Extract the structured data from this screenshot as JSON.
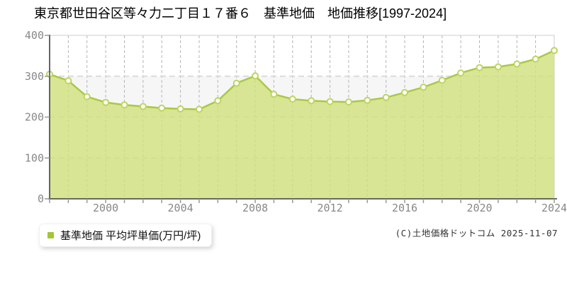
{
  "title": "東京都世田谷区等々力二丁目１７番６　基準地価　地価推移[1997-2024]",
  "legend": {
    "label": "基準地価 平均坪単価(万円/坪)"
  },
  "footer": {
    "copyright": "(C)土地価格ドットコム 2025-11-07"
  },
  "chart_data": {
    "type": "area",
    "title": "東京都世田谷区等々力二丁目１７番６ 基準地価 地価推移[1997-2024]",
    "xlabel": "",
    "ylabel": "平均坪単価(万円/坪)",
    "ylim": [
      0,
      400
    ],
    "y_ticks": [
      0,
      100,
      200,
      300,
      400
    ],
    "x": [
      1997,
      1998,
      1999,
      2000,
      2001,
      2002,
      2003,
      2004,
      2005,
      2006,
      2007,
      2008,
      2009,
      2010,
      2011,
      2012,
      2013,
      2014,
      2015,
      2016,
      2017,
      2018,
      2019,
      2020,
      2021,
      2022,
      2023,
      2024
    ],
    "x_tick_years": [
      2000,
      2004,
      2008,
      2012,
      2016,
      2020,
      2024
    ],
    "series": [
      {
        "name": "基準地価 平均坪単価(万円/坪)",
        "values": [
          305,
          289,
          250,
          236,
          230,
          226,
          222,
          220,
          219,
          240,
          283,
          301,
          256,
          244,
          240,
          238,
          237,
          241,
          248,
          260,
          273,
          290,
          308,
          321,
          323,
          330,
          342,
          363
        ]
      }
    ],
    "grid": "dashed",
    "legend_position": "bottom-left",
    "colors": {
      "line": "#a9c944",
      "fill": "#cfe07e",
      "marker_fill": "#ffffff",
      "marker_stroke": "#bcd55e",
      "legend_marker": "#a4c636",
      "grid_vertical": "#b5b5b5",
      "grid_horizontal": "#dcdcdc",
      "band": "#f6f6f6",
      "plot_border": "#cccccc",
      "axis": "#555555",
      "tick": "#999999",
      "tick_label": "#888888"
    }
  }
}
